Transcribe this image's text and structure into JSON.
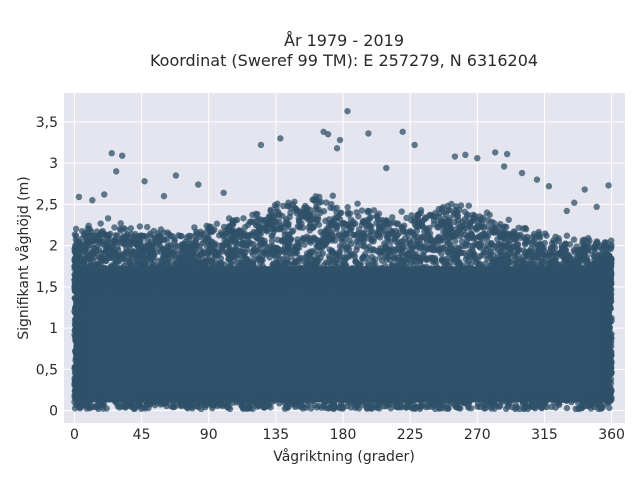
{
  "chart_data": {
    "type": "scatter",
    "title": "År 1979 - 2019",
    "subtitle": "Koordinat (Sweref 99 TM): E 257279, N 6316204",
    "xlabel": "Vågriktning (grader)",
    "ylabel": "Signifikant våghöjd (m)",
    "xlim": [
      -7,
      369
    ],
    "ylim": [
      -0.15,
      3.85
    ],
    "x_ticks": [
      0,
      45,
      90,
      135,
      180,
      225,
      270,
      315,
      360
    ],
    "x_tick_labels": [
      "0",
      "45",
      "90",
      "135",
      "180",
      "225",
      "270",
      "315",
      "360"
    ],
    "y_ticks": [
      0,
      0.5,
      1,
      1.5,
      2,
      2.5,
      3,
      3.5
    ],
    "y_tick_labels": [
      "0",
      "0,5",
      "1",
      "1,5",
      "2",
      "2,5",
      "3",
      "3,5"
    ],
    "grid": true,
    "marker_color": "#2f5068",
    "background_color": "#e5e5ef",
    "outliers": [
      {
        "x": 183,
        "y": 3.63
      },
      {
        "x": 167,
        "y": 3.38
      },
      {
        "x": 170,
        "y": 3.35
      },
      {
        "x": 197,
        "y": 3.36
      },
      {
        "x": 220,
        "y": 3.38
      },
      {
        "x": 138,
        "y": 3.3
      },
      {
        "x": 178,
        "y": 3.28
      },
      {
        "x": 125,
        "y": 3.22
      },
      {
        "x": 228,
        "y": 3.22
      },
      {
        "x": 176,
        "y": 3.18
      },
      {
        "x": 262,
        "y": 3.1
      },
      {
        "x": 282,
        "y": 3.13
      },
      {
        "x": 290,
        "y": 3.11
      },
      {
        "x": 25,
        "y": 3.12
      },
      {
        "x": 32,
        "y": 3.09
      },
      {
        "x": 255,
        "y": 3.08
      },
      {
        "x": 270,
        "y": 3.06
      },
      {
        "x": 209,
        "y": 2.94
      },
      {
        "x": 288,
        "y": 2.96
      },
      {
        "x": 300,
        "y": 2.88
      },
      {
        "x": 28,
        "y": 2.9
      },
      {
        "x": 310,
        "y": 2.8
      },
      {
        "x": 318,
        "y": 2.72
      },
      {
        "x": 342,
        "y": 2.68
      },
      {
        "x": 358,
        "y": 2.73
      },
      {
        "x": 47,
        "y": 2.78
      },
      {
        "x": 68,
        "y": 2.85
      },
      {
        "x": 83,
        "y": 2.74
      },
      {
        "x": 20,
        "y": 2.62
      },
      {
        "x": 3,
        "y": 2.59
      },
      {
        "x": 12,
        "y": 2.55
      },
      {
        "x": 60,
        "y": 2.6
      },
      {
        "x": 100,
        "y": 2.64
      },
      {
        "x": 335,
        "y": 2.52
      },
      {
        "x": 350,
        "y": 2.47
      },
      {
        "x": 330,
        "y": 2.42
      }
    ]
  }
}
